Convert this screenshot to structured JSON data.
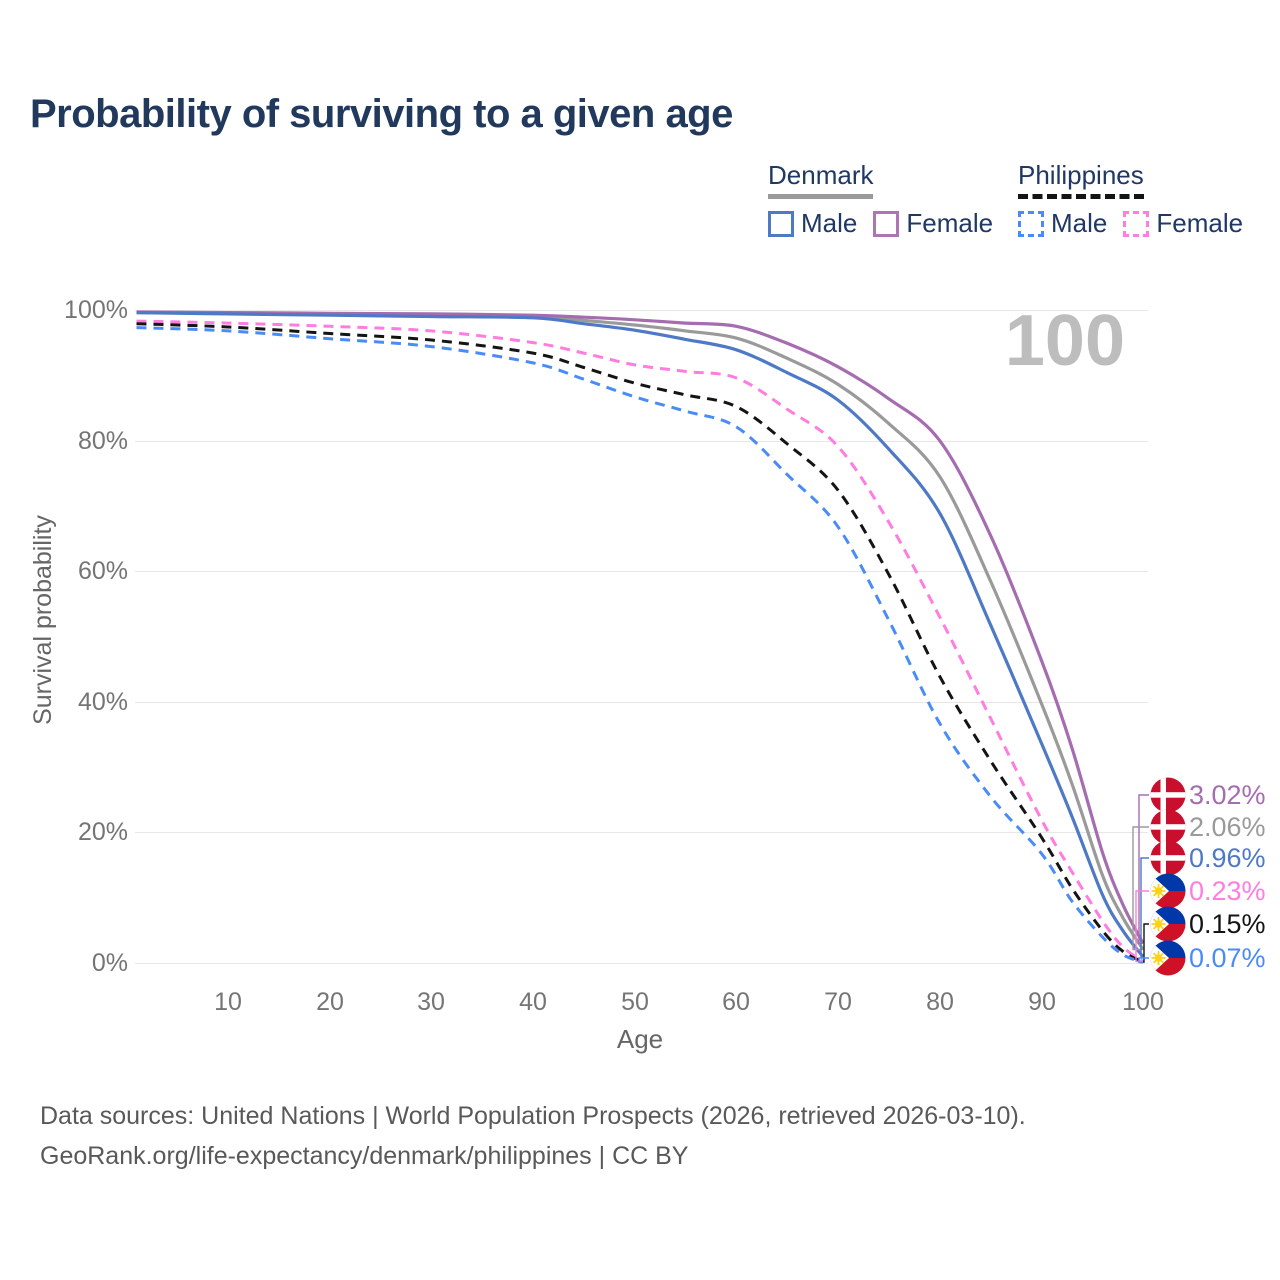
{
  "title": "Probability of surviving to a given age",
  "legend": {
    "groups": [
      {
        "name": "Denmark",
        "line_style": "solid",
        "underline_color": "#9a9a9a",
        "items": [
          {
            "label": "Male",
            "color": "#4e79c5"
          },
          {
            "label": "Female",
            "color": "#ad74b6"
          }
        ]
      },
      {
        "name": "Philippines",
        "line_style": "dashed",
        "underline_color": "#141414",
        "items": [
          {
            "label": "Male",
            "color": "#4a8cf7"
          },
          {
            "label": "Female",
            "color": "#ff7ce0"
          }
        ]
      }
    ]
  },
  "chart_data": {
    "type": "line",
    "xlabel": "Age",
    "ylabel": "Survival probability",
    "xlim": [
      1,
      100
    ],
    "ylim": [
      0,
      100
    ],
    "x_tick_labels": [
      "10",
      "20",
      "30",
      "40",
      "50",
      "60",
      "70",
      "80",
      "90",
      "100"
    ],
    "y_tick_labels": [
      "100%",
      "80%",
      "60%",
      "40%",
      "20%",
      "0%"
    ],
    "age_marker": "100",
    "grid": "horizontal",
    "x": [
      1,
      10,
      20,
      30,
      40,
      45,
      50,
      55,
      60,
      65,
      70,
      75,
      80,
      85,
      90,
      93,
      96,
      98,
      100
    ],
    "series": [
      {
        "id": "denmark-female",
        "name": "Denmark Female",
        "country": "Denmark",
        "sex": "Female",
        "flag": "denmark",
        "color": "#a56db0",
        "dashed": false,
        "end_label": "3.02%",
        "values": [
          99.7,
          99.6,
          99.5,
          99.4,
          99.2,
          98.9,
          98.5,
          98.0,
          97.5,
          94.9,
          91.3,
          86.4,
          80.0,
          65.5,
          46.4,
          33.0,
          17.0,
          9.0,
          3.02
        ]
      },
      {
        "id": "denmark-both",
        "name": "Denmark",
        "country": "Denmark",
        "sex": "Both",
        "flag": "denmark",
        "color": "#9a9a9a",
        "dashed": false,
        "end_label": "2.06%",
        "values": [
          99.6,
          99.5,
          99.4,
          99.2,
          99.0,
          98.4,
          97.7,
          96.8,
          95.7,
          92.6,
          88.6,
          82.6,
          74.5,
          58.5,
          39.8,
          27.5,
          13.5,
          7.0,
          2.06
        ]
      },
      {
        "id": "denmark-male",
        "name": "Denmark Male",
        "country": "Denmark",
        "sex": "Male",
        "flag": "denmark",
        "color": "#4e79c5",
        "dashed": false,
        "end_label": "0.96%",
        "values": [
          99.6,
          99.4,
          99.2,
          99.0,
          98.8,
          97.9,
          96.9,
          95.5,
          93.9,
          90.4,
          86.2,
          78.7,
          68.9,
          51.8,
          33.7,
          22.5,
          10.5,
          5.0,
          0.96
        ]
      },
      {
        "id": "philippines-female",
        "name": "Philippines Female",
        "country": "Philippines",
        "sex": "Female",
        "flag": "philippines",
        "color": "#ff7ce0",
        "dashed": true,
        "end_label": "0.23%",
        "values": [
          98.3,
          98.0,
          97.5,
          96.8,
          95.0,
          93.4,
          91.6,
          90.6,
          89.6,
          84.8,
          79.1,
          67.5,
          53.0,
          37.5,
          22.0,
          14.0,
          6.5,
          2.5,
          0.23
        ]
      },
      {
        "id": "philippines-both",
        "name": "Philippines",
        "country": "Philippines",
        "sex": "Both",
        "flag": "philippines",
        "color": "#141414",
        "dashed": true,
        "end_label": "0.15%",
        "values": [
          97.9,
          97.4,
          96.4,
          95.4,
          93.4,
          91.2,
          88.8,
          87.0,
          85.2,
          79.5,
          72.4,
          59.5,
          43.9,
          31.0,
          19.3,
          11.5,
          5.0,
          1.8,
          0.15
        ]
      },
      {
        "id": "philippines-male",
        "name": "Philippines Male",
        "country": "Philippines",
        "sex": "Male",
        "flag": "philippines",
        "color": "#4a8cf7",
        "dashed": true,
        "end_label": "0.07%",
        "values": [
          97.3,
          96.8,
          95.6,
          94.4,
          91.9,
          89.4,
          86.7,
          84.5,
          82.1,
          74.8,
          66.8,
          52.5,
          36.7,
          25.5,
          16.8,
          9.5,
          4.0,
          1.3,
          0.07
        ]
      }
    ]
  },
  "footer": {
    "line1": "Data sources: United Nations | World Population Prospects (2026, retrieved 2026-03-10).",
    "line2": "GeoRank.org/life-expectancy/denmark/philippines | CC BY"
  }
}
